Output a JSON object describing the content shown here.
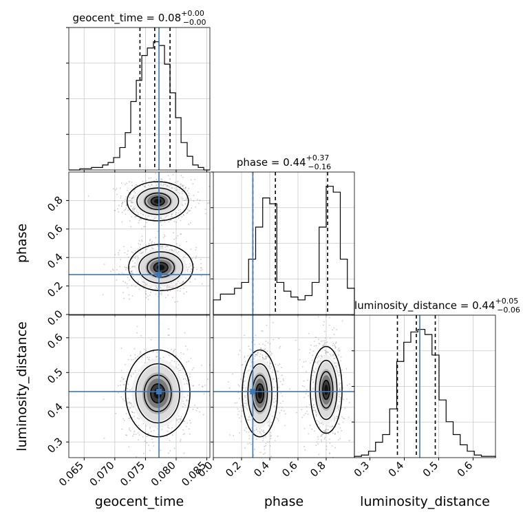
{
  "chart_data": {
    "type": "corner",
    "truth_color": "#3a78b5",
    "line_color": "#000000",
    "parameters": [
      {
        "name": "geocent_time",
        "xlabel": "geocent_time",
        "title": {
          "base": "geocent_time = 0.08",
          "sup": "+0.00",
          "sub": "−0.00"
        },
        "range": [
          0.0625,
          0.0855
        ],
        "ticks": [
          {
            "v": 0.065,
            "label": "0.065"
          },
          {
            "v": 0.07,
            "label": "0.070"
          },
          {
            "v": 0.075,
            "label": "0.075"
          },
          {
            "v": 0.08,
            "label": "0.080"
          },
          {
            "v": 0.085,
            "label": "0.085"
          }
        ],
        "truth": 0.0772,
        "quantiles": [
          0.0741,
          0.0765,
          0.079
        ],
        "hist": {
          "edges": [
            0.0625,
            0.0634,
            0.0643,
            0.0653,
            0.0662,
            0.0671,
            0.068,
            0.0689,
            0.0698,
            0.0708,
            0.0717,
            0.0726,
            0.0735,
            0.0744,
            0.0753,
            0.0763,
            0.0772,
            0.0781,
            0.079,
            0.0799,
            0.0808,
            0.0818,
            0.0827,
            0.0836,
            0.0845,
            0.0855
          ],
          "counts": [
            0,
            0,
            1,
            1,
            2,
            2,
            4,
            6,
            10,
            18,
            30,
            55,
            72,
            92,
            98,
            103,
            100,
            85,
            62,
            42,
            22,
            11,
            4,
            2,
            0
          ]
        }
      },
      {
        "name": "phase",
        "xlabel": "phase",
        "ylabel": "phase",
        "title": {
          "base": "phase = 0.44",
          "sup": "+0.37",
          "sub": "−0.16"
        },
        "range": [
          0.0,
          1.0
        ],
        "ticks": [
          {
            "v": 0.0,
            "label": "0.0"
          },
          {
            "v": 0.2,
            "label": "0.2"
          },
          {
            "v": 0.4,
            "label": "0.4"
          },
          {
            "v": 0.6,
            "label": "0.6"
          },
          {
            "v": 0.8,
            "label": "0.8"
          }
        ],
        "truth": 0.28,
        "quantiles": [
          0.28,
          0.44,
          0.81
        ],
        "hist": {
          "edges": [
            0.0,
            0.05,
            0.1,
            0.15,
            0.2,
            0.25,
            0.3,
            0.35,
            0.4,
            0.45,
            0.5,
            0.55,
            0.6,
            0.65,
            0.7,
            0.75,
            0.8,
            0.85,
            0.9,
            0.95,
            1.0
          ],
          "counts": [
            10,
            14,
            14,
            18,
            22,
            38,
            60,
            80,
            76,
            22,
            16,
            12,
            10,
            13,
            22,
            60,
            88,
            84,
            38,
            18
          ]
        }
      },
      {
        "name": "luminosity_distance",
        "xlabel": "luminosity_distance",
        "ylabel": "luminosity_distance",
        "title": {
          "base": "luminosity_distance = 0.44",
          "sup": "+0.05",
          "sub": "−0.06"
        },
        "range": [
          0.255,
          0.665
        ],
        "ticks": [
          {
            "v": 0.3,
            "label": "0.3"
          },
          {
            "v": 0.4,
            "label": "0.4"
          },
          {
            "v": 0.5,
            "label": "0.5"
          },
          {
            "v": 0.6,
            "label": "0.6"
          }
        ],
        "truth": 0.445,
        "quantiles": [
          0.38,
          0.435,
          0.49
        ],
        "hist": {
          "edges": [
            0.255,
            0.2755,
            0.296,
            0.3165,
            0.337,
            0.3575,
            0.378,
            0.3985,
            0.419,
            0.4395,
            0.46,
            0.4805,
            0.501,
            0.5215,
            0.542,
            0.5625,
            0.583,
            0.6035,
            0.624,
            0.6445,
            0.665
          ],
          "counts": [
            1,
            2,
            5,
            12,
            18,
            38,
            75,
            90,
            98,
            100,
            96,
            80,
            45,
            28,
            18,
            10,
            5,
            2,
            1,
            1
          ]
        }
      }
    ],
    "pairs": [
      {
        "x": 0,
        "y": 1,
        "blobs": [
          {
            "cx": 0.077,
            "cy": 0.795,
            "sx": 0.002,
            "sy": 0.055
          },
          {
            "cx": 0.0775,
            "cy": 0.33,
            "sx": 0.0021,
            "sy": 0.065
          }
        ]
      },
      {
        "x": 0,
        "y": 2,
        "blobs": [
          {
            "cx": 0.077,
            "cy": 0.44,
            "sx": 0.0021,
            "sy": 0.05
          }
        ]
      },
      {
        "x": 1,
        "y": 2,
        "blobs": [
          {
            "cx": 0.33,
            "cy": 0.44,
            "sx": 0.05,
            "sy": 0.05
          },
          {
            "cx": 0.8,
            "cy": 0.45,
            "sx": 0.045,
            "sy": 0.05
          }
        ]
      }
    ]
  }
}
